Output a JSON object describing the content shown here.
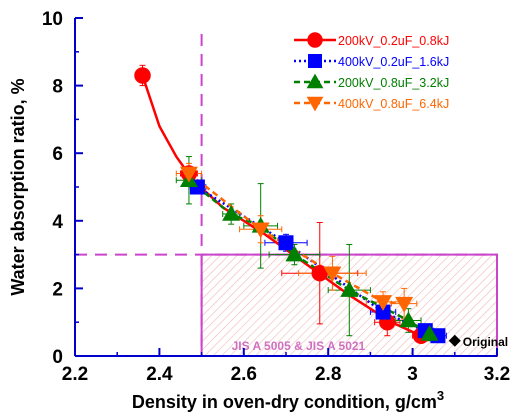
{
  "chart_data": {
    "type": "scatter",
    "xlabel": "Density in oven-dry condition, g/cm",
    "xlabel_sup": "3",
    "ylabel": "Water absorption ratio, %",
    "xlim": [
      2.2,
      3.2
    ],
    "ylim": [
      0,
      10
    ],
    "xticks": [
      "2.2",
      "2.4",
      "2.6",
      "2.8",
      "3",
      "3.2"
    ],
    "yticks": [
      "0",
      "2",
      "4",
      "6",
      "8",
      "10"
    ],
    "grid": false,
    "legend_position": "top-right",
    "series": [
      {
        "name": "200kV_0.2uF_0.8kJ",
        "color": "#ff0000",
        "marker": "circle",
        "line": "solid",
        "x": [
          2.36,
          2.47,
          2.78,
          2.94,
          3.02
        ],
        "y": [
          8.3,
          5.4,
          2.45,
          1.0,
          0.6
        ],
        "xerr": [
          0,
          0.02,
          0.09,
          0.03,
          0.02
        ],
        "yerr": [
          0.3,
          0.2,
          1.5,
          0.4,
          0.2
        ],
        "curve_x": [
          2.36,
          2.4,
          2.44,
          2.48,
          2.55,
          2.65,
          2.75,
          2.85,
          2.95,
          3.02
        ],
        "curve_y": [
          8.3,
          6.8,
          5.9,
          5.2,
          4.4,
          3.6,
          2.7,
          1.8,
          1.0,
          0.6
        ]
      },
      {
        "name": "400kV_0.2uF_1.6kJ",
        "color": "#0000ff",
        "marker": "square",
        "line": "dotted",
        "x": [
          2.49,
          2.7,
          2.93,
          3.03,
          3.06
        ],
        "y": [
          5.0,
          3.35,
          1.3,
          0.75,
          0.6
        ],
        "xerr": [
          0.02,
          0.05,
          0.03,
          0.02,
          0.02
        ],
        "yerr": [
          0.2,
          0.25,
          0.2,
          0.15,
          0.1
        ]
      },
      {
        "name": "200kV_0.8uF_3.2kJ",
        "color": "#008000",
        "marker": "triangle-up",
        "line": "dashed",
        "x": [
          2.47,
          2.57,
          2.64,
          2.72,
          2.85,
          2.99,
          3.04
        ],
        "y": [
          5.2,
          4.2,
          3.85,
          3.0,
          1.95,
          1.05,
          0.65
        ],
        "xerr": [
          0.03,
          0.02,
          0.04,
          0.06,
          0.05,
          0.03,
          0.02
        ],
        "yerr": [
          0.7,
          0.3,
          1.25,
          0.3,
          1.35,
          0.35,
          0.2
        ]
      },
      {
        "name": "400kV_0.8uF_6.4kJ",
        "color": "#ff6600",
        "marker": "triangle-down",
        "line": "dashed",
        "x": [
          2.47,
          2.64,
          2.81,
          2.93,
          2.98
        ],
        "y": [
          5.4,
          3.75,
          2.45,
          1.6,
          1.55
        ],
        "xerr": [
          0.03,
          0.05,
          0.08,
          0.04,
          0.03
        ],
        "yerr": [
          0.3,
          0.4,
          0.5,
          0.3,
          0.45
        ]
      }
    ],
    "original": {
      "label": "Original",
      "x": 3.1,
      "y": 0.45,
      "color": "#000000"
    },
    "reference_lines": [
      {
        "axis": "x",
        "value": 2.5,
        "color": "#cc44cc",
        "style": "dashed"
      },
      {
        "axis": "y",
        "value": 3.0,
        "color": "#cc44cc",
        "style": "dashed"
      }
    ],
    "region": {
      "label": "JIS A 5005 & JIS A 5021",
      "x": [
        2.5,
        3.2
      ],
      "y": [
        0,
        3.0
      ],
      "color": "#cc44cc",
      "fill": "#f2c9c9"
    }
  }
}
